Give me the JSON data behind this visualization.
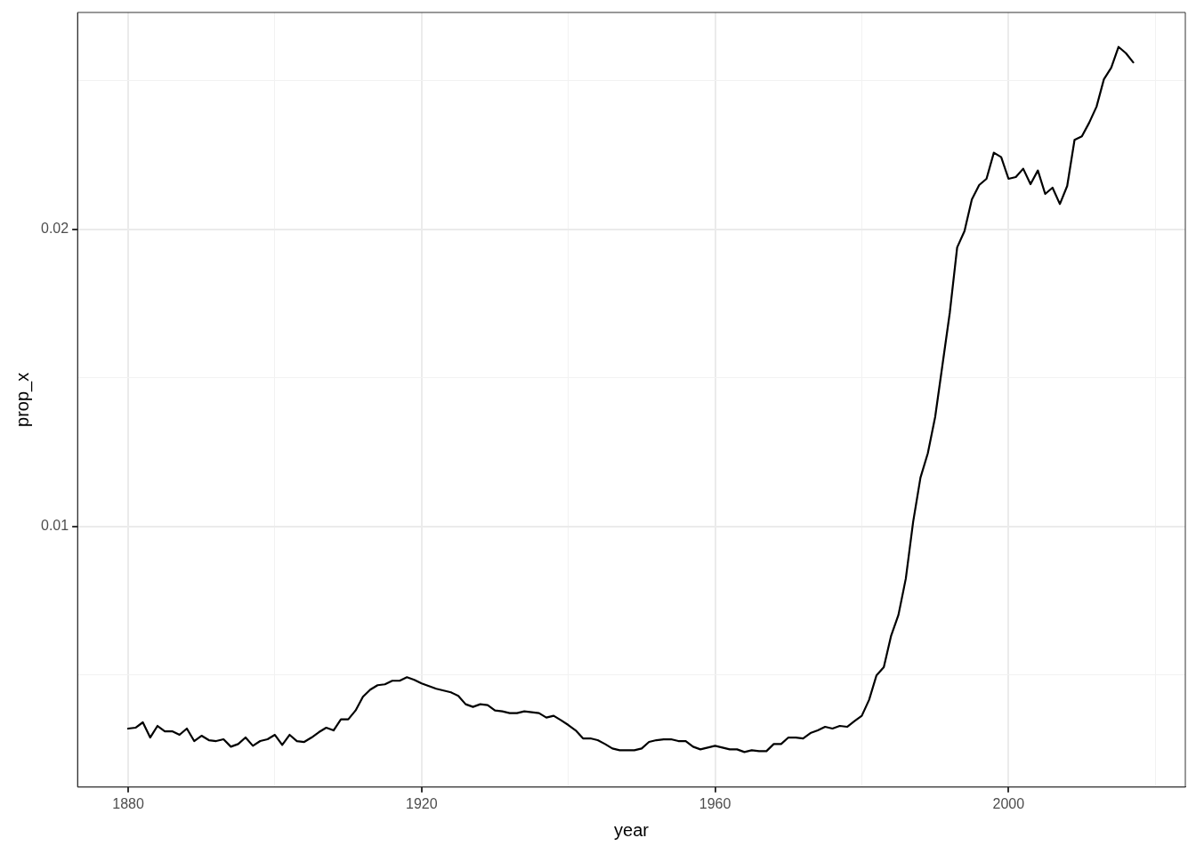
{
  "chart_data": {
    "type": "line",
    "xlabel": "year",
    "ylabel": "prop_x",
    "x": [
      1880,
      1881,
      1882,
      1883,
      1884,
      1885,
      1886,
      1887,
      1888,
      1889,
      1890,
      1891,
      1892,
      1893,
      1894,
      1895,
      1896,
      1897,
      1898,
      1899,
      1900,
      1901,
      1902,
      1903,
      1904,
      1905,
      1906,
      1907,
      1908,
      1909,
      1910,
      1911,
      1912,
      1913,
      1914,
      1915,
      1916,
      1917,
      1918,
      1919,
      1920,
      1921,
      1922,
      1923,
      1924,
      1925,
      1926,
      1927,
      1928,
      1929,
      1930,
      1931,
      1932,
      1933,
      1934,
      1935,
      1936,
      1937,
      1938,
      1939,
      1940,
      1941,
      1942,
      1943,
      1944,
      1945,
      1946,
      1947,
      1948,
      1949,
      1950,
      1951,
      1952,
      1953,
      1954,
      1955,
      1956,
      1957,
      1958,
      1959,
      1960,
      1961,
      1962,
      1963,
      1964,
      1965,
      1966,
      1967,
      1968,
      1969,
      1970,
      1971,
      1972,
      1973,
      1974,
      1975,
      1976,
      1977,
      1978,
      1979,
      1980,
      1981,
      1982,
      1983,
      1984,
      1985,
      1986,
      1987,
      1988,
      1989,
      1990,
      1991,
      1992,
      1993,
      1994,
      1995,
      1996,
      1997,
      1998,
      1999,
      2000,
      2001,
      2002,
      2003,
      2004,
      2005,
      2006,
      2007,
      2008,
      2009,
      2010,
      2011,
      2012,
      2013,
      2014,
      2015,
      2016,
      2017
    ],
    "series": [
      {
        "color": "#000000",
        "values": [
          0.00319,
          0.00322,
          0.0034,
          0.00289,
          0.00328,
          0.0031,
          0.0031,
          0.00298,
          0.00319,
          0.00277,
          0.00295,
          0.0028,
          0.00277,
          0.00283,
          0.00258,
          0.00267,
          0.00289,
          0.00261,
          0.00277,
          0.00283,
          0.00298,
          0.00264,
          0.00298,
          0.00277,
          0.00274,
          0.00289,
          0.00307,
          0.00322,
          0.00313,
          0.0035,
          0.0035,
          0.0038,
          0.00426,
          0.0045,
          0.00465,
          0.00468,
          0.0048,
          0.0048,
          0.00492,
          0.00483,
          0.00471,
          0.00462,
          0.00453,
          0.00447,
          0.00441,
          0.00429,
          0.00401,
          0.00392,
          0.00401,
          0.00398,
          0.0038,
          0.00377,
          0.00371,
          0.00371,
          0.00377,
          0.00374,
          0.00371,
          0.00356,
          0.00362,
          0.00347,
          0.00331,
          0.00313,
          0.00286,
          0.00286,
          0.0028,
          0.00267,
          0.00252,
          0.00246,
          0.00246,
          0.00246,
          0.00252,
          0.00274,
          0.0028,
          0.00283,
          0.00283,
          0.00277,
          0.00277,
          0.00258,
          0.00249,
          0.00255,
          0.00261,
          0.00255,
          0.00249,
          0.00249,
          0.0024,
          0.00246,
          0.00243,
          0.00243,
          0.00267,
          0.00267,
          0.00289,
          0.00289,
          0.00286,
          0.00304,
          0.00313,
          0.00325,
          0.00319,
          0.00328,
          0.00325,
          0.00344,
          0.00362,
          0.00416,
          0.00498,
          0.00526,
          0.00632,
          0.00702,
          0.00824,
          0.01015,
          0.01164,
          0.01246,
          0.01368,
          0.01544,
          0.0172,
          0.01939,
          0.01994,
          0.021,
          0.02149,
          0.0217,
          0.02258,
          0.02243,
          0.0217,
          0.02176,
          0.02204,
          0.02152,
          0.02198,
          0.02119,
          0.0214,
          0.02085,
          0.02146,
          0.02301,
          0.02313,
          0.02359,
          0.02413,
          0.02505,
          0.02544,
          0.02614,
          0.02593,
          0.02562
        ]
      }
    ],
    "xlim": [
      1873.1,
      2024.1
    ],
    "ylim": [
      0.00122,
      0.0273
    ],
    "xticks": [
      1880,
      {
        "value": 1900,
        "label": null
      },
      1920,
      {
        "value": 1940,
        "label": null
      },
      1960,
      {
        "value": 1980,
        "label": null
      },
      2000,
      {
        "value": 2020,
        "label": null
      }
    ],
    "yticks": [
      {
        "value": 0.005,
        "label": null
      },
      {
        "value": 0.01,
        "label": "0.01"
      },
      {
        "value": 0.015,
        "label": null
      },
      {
        "value": 0.02,
        "label": "0.02"
      },
      {
        "value": 0.025,
        "label": null
      }
    ],
    "grid": true,
    "legend": false,
    "marker": "none",
    "line_style": "solid"
  }
}
